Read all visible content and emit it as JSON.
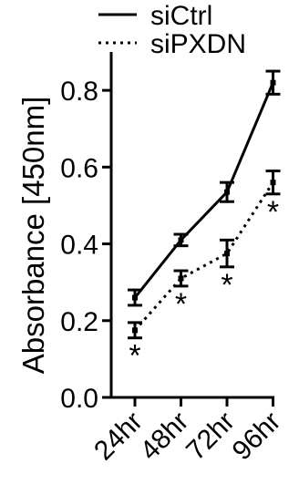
{
  "chart_data": {
    "type": "line",
    "title": "",
    "xlabel": "",
    "ylabel": "Absorbance [450nm]",
    "categories": [
      "24hr",
      "48hr",
      "72hr",
      "96hr"
    ],
    "ylim": [
      0.0,
      0.9
    ],
    "yticks": [
      "0.0",
      "0.2",
      "0.4",
      "0.6",
      "0.8"
    ],
    "ytick_values": [
      0.0,
      0.2,
      0.4,
      0.6,
      0.8
    ],
    "grid": false,
    "legend_position": "top-right",
    "series": [
      {
        "name": "siCtrl",
        "style": "solid",
        "color": "#000000",
        "values": [
          0.26,
          0.41,
          0.535,
          0.82
        ],
        "errors": [
          0.02,
          0.015,
          0.025,
          0.03
        ],
        "annotations": [
          "",
          "",
          "",
          ""
        ]
      },
      {
        "name": "siPXDN",
        "style": "dotted",
        "color": "#000000",
        "values": [
          0.175,
          0.31,
          0.375,
          0.56
        ],
        "errors": [
          0.02,
          0.02,
          0.035,
          0.03
        ],
        "annotations": [
          "*",
          "*",
          "*",
          "*"
        ]
      }
    ]
  }
}
